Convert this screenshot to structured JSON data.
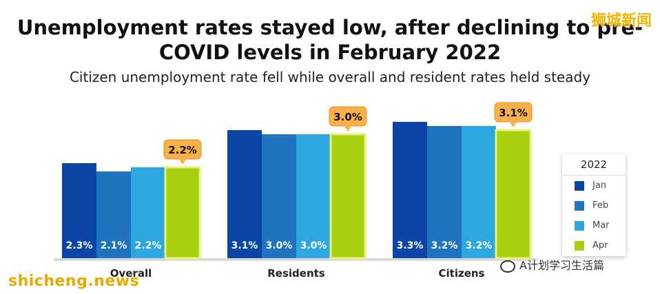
{
  "watermarks": {
    "top_right": "狮城新闻",
    "bottom_left": "shicheng.news",
    "bottom_right": "A计划学习生活篇"
  },
  "chart_data": {
    "type": "bar",
    "title": "Unemployment rates stayed low, after declining to pre-COVID levels in February 2022",
    "subtitle": "Citizen unemployment rate fell while overall and resident rates held steady",
    "categories": [
      "Overall",
      "Residents",
      "Citizens"
    ],
    "series": [
      {
        "name": "Jan",
        "color": "#0b45a6",
        "values": [
          2.3,
          3.1,
          3.3
        ],
        "labels": [
          "2.3%",
          "3.1%",
          "3.3%"
        ]
      },
      {
        "name": "Feb",
        "color": "#1f73bf",
        "values": [
          2.1,
          3.0,
          3.2
        ],
        "labels": [
          "2.1%",
          "3.0%",
          "3.2%"
        ]
      },
      {
        "name": "Mar",
        "color": "#2ea7e0",
        "values": [
          2.2,
          3.0,
          3.2
        ],
        "labels": [
          "2.2%",
          "3.0%",
          "3.2%"
        ]
      },
      {
        "name": "Apr",
        "color": "#a8cf10",
        "values": [
          2.2,
          3.0,
          3.1
        ],
        "labels": [
          "2.2%",
          "3.0%",
          "3.1%"
        ]
      }
    ],
    "legend_title": "2022",
    "legend_position": "right",
    "ylim": [
      0,
      4.0
    ],
    "grid": false,
    "callout_color": "#f7b04a"
  }
}
